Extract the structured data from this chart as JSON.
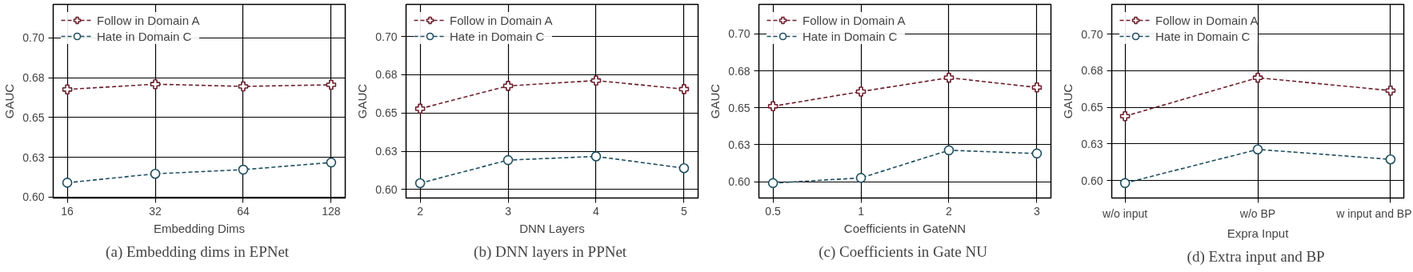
{
  "chart_data": [
    {
      "type": "line",
      "title": "(a)  Embedding dims in EPNet",
      "xlabel": "Embedding Dims",
      "ylabel": "GAUC",
      "categories": [
        "16",
        "32",
        "64",
        "128"
      ],
      "series": [
        {
          "name": "Follow in Domain A",
          "color": "#6b1f2e",
          "marker": "cross",
          "values": [
            0.6676,
            0.6709,
            0.6695,
            0.6705
          ]
        },
        {
          "name": "Hate in Domain C",
          "color": "#1f4e5f",
          "marker": "circle",
          "values": [
            0.609,
            0.6146,
            0.6172,
            0.6217
          ]
        }
      ],
      "ylim": [
        0.5994,
        0.721
      ],
      "yticks": [
        {
          "value": 0.6,
          "label": "0.60"
        },
        {
          "value": 0.625,
          "label": "0.63"
        },
        {
          "value": 0.65,
          "label": "0.65"
        },
        {
          "value": 0.675,
          "label": "0.68"
        },
        {
          "value": 0.7,
          "label": "0.70"
        }
      ],
      "grid": true,
      "legend": "top left",
      "line_style": "dashed"
    },
    {
      "type": "line",
      "title": "(b)  DNN layers in PPNet",
      "xlabel": "DNN Layers",
      "ylabel": "GAUC",
      "categories": [
        "2",
        "3",
        "4",
        "5"
      ],
      "series": [
        {
          "name": "Follow in Domain A",
          "color": "#6b1f2e",
          "marker": "cross",
          "values": [
            0.6528,
            0.6677,
            0.6712,
            0.6656
          ]
        },
        {
          "name": "Hate in Domain C",
          "color": "#1f4e5f",
          "marker": "circle",
          "values": [
            0.6041,
            0.6192,
            0.6216,
            0.6139
          ]
        }
      ],
      "ylim": [
        0.5944,
        0.721
      ],
      "yticks": [
        {
          "value": 0.6,
          "label": "0.60"
        },
        {
          "value": 0.625,
          "label": "0.63"
        },
        {
          "value": 0.65,
          "label": "0.65"
        },
        {
          "value": 0.675,
          "label": "0.68"
        },
        {
          "value": 0.7,
          "label": "0.70"
        }
      ],
      "grid": true,
      "legend": "top left",
      "line_style": "dashed"
    },
    {
      "type": "line",
      "title": "(c)  Coefficients in Gate NU",
      "xlabel": "Coefficients in GateNN",
      "ylabel": "GAUC",
      "categories": [
        "0.5",
        "1",
        "2",
        "3"
      ],
      "series": [
        {
          "name": "Follow in Domain A",
          "color": "#6b1f2e",
          "marker": "cross",
          "values": [
            0.6511,
            0.661,
            0.6704,
            0.6638
          ]
        },
        {
          "name": "Hate in Domain C",
          "color": "#1f4e5f",
          "marker": "circle",
          "values": [
            0.5991,
            0.6026,
            0.6213,
            0.6191
          ]
        }
      ],
      "ylim": [
        0.589,
        0.72
      ],
      "yticks": [
        {
          "value": 0.6,
          "label": "0.60"
        },
        {
          "value": 0.625,
          "label": "0.63"
        },
        {
          "value": 0.65,
          "label": "0.65"
        },
        {
          "value": 0.675,
          "label": "0.68"
        },
        {
          "value": 0.7,
          "label": "0.70"
        }
      ],
      "grid": true,
      "legend": "top left",
      "line_style": "dashed"
    },
    {
      "type": "line",
      "title": "(d)  Extra input and BP",
      "xlabel": "Expra Input",
      "ylabel": "GAUC",
      "categories": [
        "w/o input",
        "w/o BP",
        "w input and BP"
      ],
      "series": [
        {
          "name": "Follow in Domain A",
          "color": "#6b1f2e",
          "marker": "cross",
          "values": [
            0.6439,
            0.6702,
            0.6614
          ]
        },
        {
          "name": "Hate in Domain C",
          "color": "#1f4e5f",
          "marker": "circle",
          "values": [
            0.5982,
            0.6212,
            0.6144
          ]
        }
      ],
      "ylim": [
        0.588,
        0.7203
      ],
      "yticks": [
        {
          "value": 0.6,
          "label": "0.60"
        },
        {
          "value": 0.625,
          "label": "0.63"
        },
        {
          "value": 0.65,
          "label": "0.65"
        },
        {
          "value": 0.675,
          "label": "0.68"
        },
        {
          "value": 0.7,
          "label": "0.70"
        }
      ],
      "grid": true,
      "legend": "top left",
      "line_style": "dashed"
    }
  ]
}
